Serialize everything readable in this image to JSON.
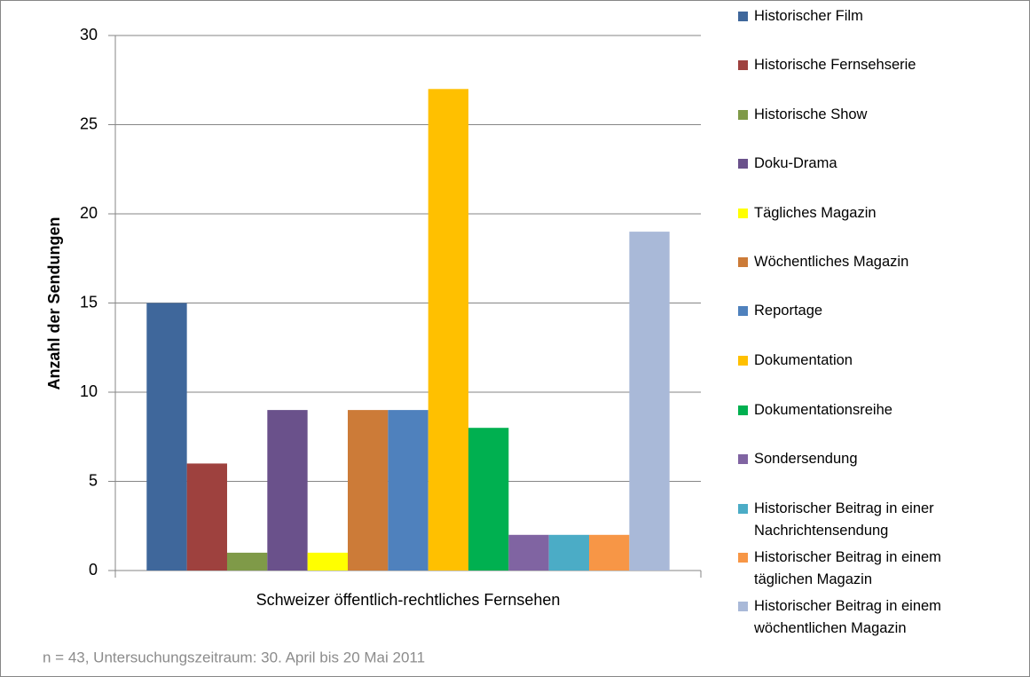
{
  "chart_data": {
    "type": "bar",
    "ylabel": "Anzahl der Sendungen",
    "note": "n = 43, Untersuchungszeitraum: 30. April bis 20 Mai 2011",
    "categories": [
      "Schweizer öffentlich-rechtliches Fernsehen"
    ],
    "series": [
      {
        "name": "Historischer Film",
        "color": "#3f679b",
        "values": [
          15
        ]
      },
      {
        "name": "Historische Fernsehserie",
        "color": "#9e413e",
        "values": [
          6
        ]
      },
      {
        "name": "Historische Show",
        "color": "#7f9a48",
        "values": [
          1
        ]
      },
      {
        "name": "Doku-Drama",
        "color": "#6a518b",
        "values": [
          9
        ]
      },
      {
        "name": "Tägliches Magazin",
        "color": "#ffff00",
        "values": [
          1
        ]
      },
      {
        "name": "Wöchentliches Magazin",
        "color": "#cc7b38",
        "values": [
          9
        ]
      },
      {
        "name": "Reportage",
        "color": "#4f81bd",
        "values": [
          9
        ]
      },
      {
        "name": "Dokumentation",
        "color": "#ffc000",
        "values": [
          27
        ]
      },
      {
        "name": "Dokumentationsreihe",
        "color": "#00b050",
        "values": [
          8
        ]
      },
      {
        "name": "Sondersendung",
        "color": "#8064a2",
        "values": [
          2
        ]
      },
      {
        "name": "Historischer Beitrag in einer Nachrichtensendung",
        "color": "#4bacc6",
        "values": [
          2
        ]
      },
      {
        "name": "Historischer Beitrag in einem täglichen Magazin",
        "color": "#f79646",
        "values": [
          2
        ]
      },
      {
        "name": "Historischer Beitrag in einem wöchentlichen Magazin",
        "color": "#a9b9d8",
        "values": [
          19
        ]
      }
    ],
    "ylim": [
      0,
      30
    ],
    "yticks": [
      0,
      5,
      10,
      15,
      20,
      25,
      30
    ],
    "grid": true,
    "legend": "right"
  }
}
